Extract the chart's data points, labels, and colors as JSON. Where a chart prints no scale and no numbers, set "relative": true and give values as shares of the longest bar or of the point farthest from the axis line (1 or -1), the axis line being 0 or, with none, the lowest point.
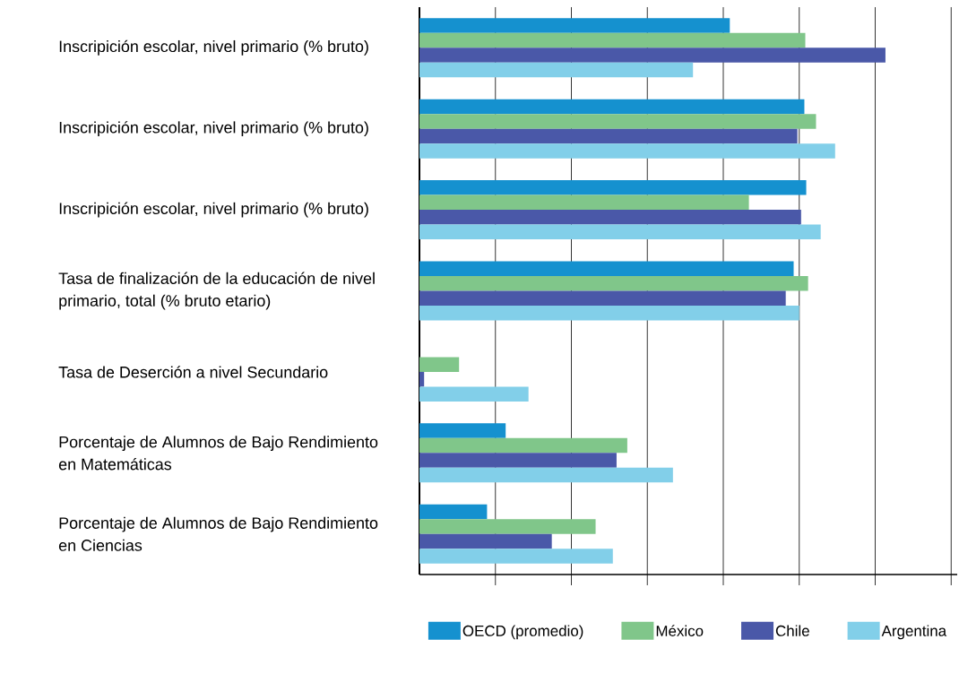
{
  "chart_data": {
    "type": "bar",
    "orientation": "horizontal",
    "relative": true,
    "grid": "x",
    "legend": "bottom",
    "tick_labels": "y",
    "categories": [
      "Inscripición escolar, nivel primario (% bruto)",
      "Inscripición escolar, nivel primario (% bruto)",
      "Inscripición escolar, nivel primario (% bruto)",
      "Tasa de finalización de la educación de nivel primario, total (% bruto etario)",
      "Tasa de Deserción a nivel Secundario",
      "Porcentaje de Alumnos de Bajo Rendimiento en Matemáticas",
      "Porcentaje de Alumnos de Bajo Rendimiento en Ciencias"
    ],
    "series": [
      {
        "name": "OECD (promedio)",
        "color": "#1591cf",
        "values": [
          0.666,
          0.826,
          0.83,
          0.803,
          null,
          0.185,
          0.145
        ]
      },
      {
        "name": "México",
        "color": "#80c68a",
        "values": [
          0.828,
          0.851,
          0.707,
          0.834,
          0.085,
          0.446,
          0.378
        ]
      },
      {
        "name": "Chile",
        "color": "#4a58a8",
        "values": [
          1,
          0.811,
          0.819,
          0.786,
          0.01,
          0.423,
          0.284
        ]
      },
      {
        "name": "Argentina",
        "color": "#82cfe9",
        "values": [
          0.587,
          0.892,
          0.861,
          0.815,
          0.234,
          0.544,
          0.415
        ]
      }
    ]
  }
}
